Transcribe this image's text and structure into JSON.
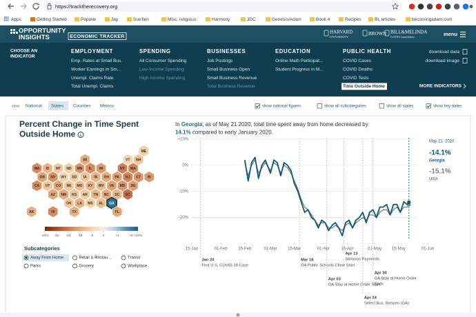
{
  "browser": {
    "url": "https://tracktherecovery.org",
    "bookmarks": [
      "Apps",
      "Getting Started",
      "Popular",
      "Jay",
      "Sue'llen",
      "Misc. religious",
      "Harmony",
      "JDC",
      "Genesis/Adam",
      "Book 4",
      "Recipes",
      "BL articles",
      "becomingadam.com"
    ]
  },
  "header": {
    "logo": [
      "OPPORTUNITY",
      "INSIGHTS"
    ],
    "badge": "ECONOMIC TRACKER",
    "partners": [
      {
        "name": "HARVARD",
        "sub": "UNIVERSITY"
      },
      {
        "name": "BROWN",
        "sub": null
      },
      {
        "name": "BILL&MELINDA",
        "sub": "GATES foundation"
      }
    ],
    "menu": "menu"
  },
  "nav": {
    "prompt": [
      "CHOOSE AN",
      "INDICATOR"
    ],
    "columns": [
      {
        "title": "EMPLOYMENT",
        "items": [
          {
            "text": "Emp. Rates at Small Bus."
          },
          {
            "text": "Worker Earnings in Sm..."
          },
          {
            "text": "Unempl. Claims Rate"
          },
          {
            "text": "Total Unempl. Claims"
          }
        ]
      },
      {
        "title": "SPENDING",
        "items": [
          {
            "text": "All Consumer Spending"
          },
          {
            "text": "Low-Income Spending",
            "disabled": true
          },
          {
            "text": "High-Income Spending",
            "disabled": true
          }
        ]
      },
      {
        "title": "BUSINESSES",
        "items": [
          {
            "text": "Job Postings"
          },
          {
            "text": "Small Business Open"
          },
          {
            "text": "Small Business Revenue"
          },
          {
            "text": "Total Business Revenue",
            "disabled": true
          }
        ]
      },
      {
        "title": "EDUCATION",
        "items": [
          {
            "text": "Online Math Participat..."
          },
          {
            "text": "Student Progress in M..."
          }
        ]
      },
      {
        "title": "PUBLIC HEALTH",
        "items": [
          {
            "text": "COVID Cases"
          },
          {
            "text": "COVID Deaths"
          },
          {
            "text": "COVID Tests"
          },
          {
            "text": "Time Outside Home",
            "selected": true
          }
        ]
      }
    ],
    "downloads": [
      "download data",
      "download image"
    ],
    "more": "MORE INDICATORS"
  },
  "view": {
    "label": "view:",
    "tabs": [
      {
        "text": "National"
      },
      {
        "text": "States",
        "selected": true
      },
      {
        "text": "Counties"
      },
      {
        "text": "Metros"
      }
    ],
    "options": [
      {
        "text": "show national figures",
        "checked": true
      },
      {
        "text": "show all subcategories",
        "checked": false
      },
      {
        "text": "show all states",
        "checked": false
      },
      {
        "text": "show key dates",
        "checked": true
      }
    ]
  },
  "panel": {
    "title": [
      "Percent Change in Time Spent",
      "Outside Home"
    ],
    "summary": {
      "lead": "In ",
      "place": "Georgia",
      "middle": ", as of May 21 2020, total time spent away from home decreased by",
      "amount": "14.1%",
      "tail": " compared to early January 2020."
    },
    "map": {
      "tiles": [
        {
          "abbr": "ME",
          "color": "#f2cfa6"
        },
        {
          "abbr": "WI",
          "color": "#e6ad82"
        },
        {
          "abbr": "VT",
          "color": "#f4d8b5"
        },
        {
          "abbr": "NH",
          "color": "#efc59a"
        },
        {
          "abbr": "WA",
          "color": "#d98b60"
        },
        {
          "abbr": "ID",
          "color": "#eab487"
        },
        {
          "abbr": "MT",
          "color": "#f0c9a0"
        },
        {
          "abbr": "ND",
          "color": "#f2d0a8"
        },
        {
          "abbr": "MN",
          "color": "#dd9366"
        },
        {
          "abbr": "IL",
          "color": "#d98a5f"
        },
        {
          "abbr": "MI",
          "color": "#e09a6d"
        },
        {
          "abbr": "NY",
          "color": "#d07e55"
        },
        {
          "abbr": "MA",
          "color": "#d5855a"
        },
        {
          "abbr": "OR",
          "color": "#e3a275"
        },
        {
          "abbr": "NV",
          "color": "#dc9164"
        },
        {
          "abbr": "WY",
          "color": "#f3d4ae"
        },
        {
          "abbr": "SD",
          "color": "#f1cda4"
        },
        {
          "abbr": "IA",
          "color": "#eec197"
        },
        {
          "abbr": "IN",
          "color": "#eab285"
        },
        {
          "abbr": "OH",
          "color": "#e6aa7e"
        },
        {
          "abbr": "PA",
          "color": "#e19e71"
        },
        {
          "abbr": "NJ",
          "color": "#d3835a"
        },
        {
          "abbr": "CT",
          "color": "#dc9468"
        },
        {
          "abbr": "RI",
          "color": "#df986b"
        },
        {
          "abbr": "CA",
          "color": "#d88a5f"
        },
        {
          "abbr": "UT",
          "color": "#f0c79d"
        },
        {
          "abbr": "CO",
          "color": "#e4a679"
        },
        {
          "abbr": "NE",
          "color": "#f0c89e"
        },
        {
          "abbr": "MO",
          "color": "#ecbb8f"
        },
        {
          "abbr": "KY",
          "color": "#eab486"
        },
        {
          "abbr": "WV",
          "color": "#edbd92"
        },
        {
          "abbr": "VA",
          "color": "#e2a074"
        },
        {
          "abbr": "MD",
          "color": "#dd9569"
        },
        {
          "abbr": "DE",
          "color": "#e19d70"
        },
        {
          "abbr": "AZ",
          "color": "#e3a478"
        },
        {
          "abbr": "NM",
          "color": "#e5a87c"
        },
        {
          "abbr": "KS",
          "color": "#efc49a"
        },
        {
          "abbr": "AR",
          "color": "#f1cca3"
        },
        {
          "abbr": "TN",
          "color": "#ebb689"
        },
        {
          "abbr": "NC",
          "color": "#e6ab7f"
        },
        {
          "abbr": "SC",
          "color": "#ebb88b"
        },
        {
          "abbr": "DC",
          "color": "#c96f48"
        },
        {
          "abbr": "OK",
          "color": "#f0c89e"
        },
        {
          "abbr": "LA",
          "color": "#e9b285"
        },
        {
          "abbr": "MS",
          "color": "#f2d0a8"
        },
        {
          "abbr": "AL",
          "color": "#eebf94"
        },
        {
          "abbr": "GA",
          "color": "#2f6f8e",
          "selected": true
        },
        {
          "abbr": "AK",
          "color": "#e7ae81"
        },
        {
          "abbr": "HI",
          "color": "#d7885d"
        },
        {
          "abbr": "TX",
          "color": "#e8b083"
        },
        {
          "abbr": "FL",
          "color": "#e4a77a"
        }
      ],
      "legend": {
        "colors": [
          "#7f2704",
          "#b5431b",
          "#d9744a",
          "#eaa77a",
          "#f5d2ae",
          "#f7f1e6",
          "#b7cfe0",
          "#4f8db8",
          "#1f5c8c"
        ],
        "ticks": [
          {
            "value": -40,
            "label": "-40%"
          },
          -32,
          -24,
          -16,
          -8,
          0,
          {
            "value": 4,
            "label": "+4"
          },
          {
            "value": 8,
            "label": "+8"
          },
          {
            "value": 10,
            "label": "+10%"
          }
        ]
      }
    },
    "subcategories": {
      "title": "Subcategories",
      "options": [
        {
          "text": "Away From Home",
          "selected": true
        },
        {
          "text": "Retail & Restau..."
        },
        {
          "text": "Transit"
        },
        {
          "text": "Parks"
        },
        {
          "text": "Grocery"
        },
        {
          "text": "Workplace"
        }
      ]
    }
  },
  "chart_data": {
    "type": "line",
    "xlim": [
      "15-Jan",
      "01-Jun"
    ],
    "xticks": [
      "15-Jan",
      "01-Feb",
      "15-Feb",
      "01-Mar",
      "15-Mar",
      "01-Apr",
      "15-Apr",
      "01-May",
      "15-May",
      "01-Jun"
    ],
    "ylim": [
      -28,
      10.5
    ],
    "yticks": [
      {
        "value": 10,
        "label": "+10%"
      },
      {
        "value": 0,
        "label": "0%"
      },
      {
        "value": -10,
        "label": "-10%"
      },
      {
        "value": -20,
        "label": "-20%"
      }
    ],
    "grid": true,
    "x": [
      "15-Feb",
      "17-Feb",
      "19-Feb",
      "21-Feb",
      "23-Feb",
      "25-Feb",
      "27-Feb",
      "01-Mar",
      "03-Mar",
      "05-Mar",
      "07-Mar",
      "09-Mar",
      "11-Mar",
      "13-Mar",
      "15-Mar",
      "17-Mar",
      "19-Mar",
      "21-Mar",
      "23-Mar",
      "25-Mar",
      "27-Mar",
      "29-Mar",
      "31-Mar",
      "02-Apr",
      "04-Apr",
      "06-Apr",
      "08-Apr",
      "10-Apr",
      "12-Apr",
      "14-Apr",
      "16-Apr",
      "18-Apr",
      "20-Apr",
      "22-Apr",
      "24-Apr",
      "26-Apr",
      "28-Apr",
      "30-Apr",
      "02-May",
      "04-May",
      "06-May",
      "08-May",
      "10-May",
      "12-May",
      "14-May",
      "16-May",
      "18-May",
      "20-May",
      "21-May"
    ],
    "series": [
      {
        "name": "USA",
        "color": "#7d7d7d",
        "end_label": "-15.1%",
        "values": [
          1,
          -4,
          0,
          2,
          -3,
          -1,
          1,
          -2,
          1,
          0,
          -3,
          0,
          -1,
          -3,
          -6,
          -9,
          -13,
          -16,
          -17,
          -19,
          -21,
          -23,
          -22,
          -22,
          -24,
          -24,
          -23,
          -24,
          -25,
          -23,
          -22,
          -24,
          -22,
          -21,
          -20,
          -21,
          -19,
          -19,
          -20,
          -18,
          -17,
          -17,
          -19,
          -17,
          -16,
          -18,
          -16,
          -16,
          -15.1
        ]
      },
      {
        "name": "Georgia",
        "color": "#0d5878",
        "end_label": "-14.1%",
        "values": [
          2,
          -6,
          1,
          3,
          -5,
          0,
          2,
          -3,
          2,
          1,
          -4,
          1,
          0,
          -2,
          -7,
          -10,
          -14,
          -18,
          -17,
          -20,
          -21,
          -24,
          -21,
          -22,
          -25,
          -23,
          -22,
          -24,
          -27,
          -22,
          -21,
          -24,
          -21,
          -20,
          -18,
          -22,
          -18,
          -17,
          -20,
          -16,
          -16,
          -15,
          -19,
          -15,
          -15,
          -18,
          -14,
          -15,
          -14.1
        ]
      }
    ],
    "end_date": "May 21, 2020",
    "annotations": [
      {
        "date": "Jan 20",
        "lines": [
          "First U.S. COVID-19 Case"
        ]
      },
      {
        "date": "Mar 18",
        "lines": [
          "GA Public Schools Close Start"
        ]
      },
      {
        "date": "Apr 03",
        "lines": [
          "GA Stay at Home Order Start"
        ]
      },
      {
        "date": "Apr 13",
        "lines": [
          "Stimulus Payments"
        ]
      },
      {
        "date": "Apr 24",
        "lines": [
          "Select Bus. Reopen (GA)"
        ]
      },
      {
        "date": "Apr 30",
        "lines": [
          "GA Stay at Home Order",
          "Ends"
        ]
      }
    ]
  }
}
